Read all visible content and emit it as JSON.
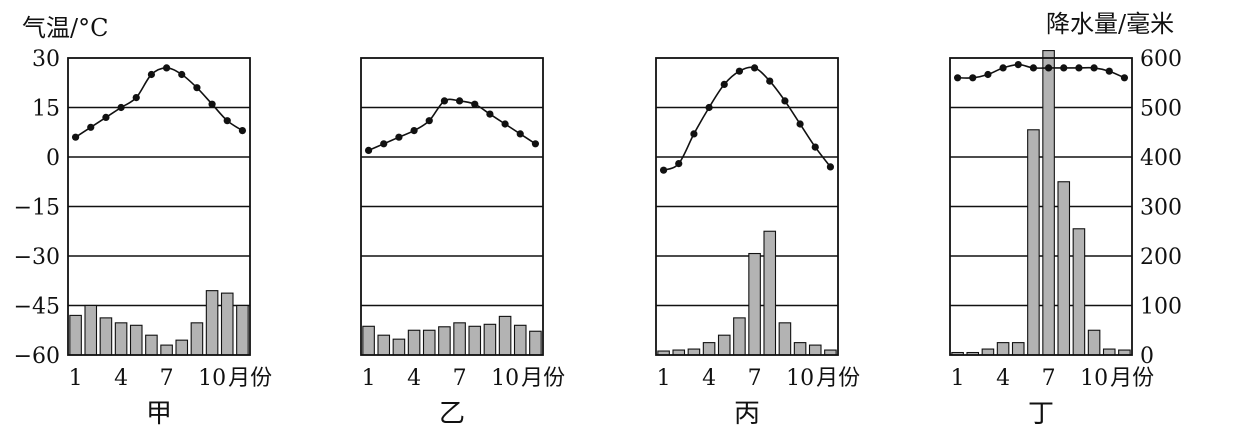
{
  "figure": {
    "left_axis_label": "气温/°C",
    "right_axis_label": "降水量/毫米",
    "x_unit": "月份",
    "temp_ticks": [
      "30",
      "15",
      "0",
      "−15",
      "−30",
      "−45",
      "−60"
    ],
    "precip_ticks": [
      "600",
      "500",
      "400",
      "300",
      "200",
      "100",
      "0"
    ],
    "month_ticks": [
      "1",
      "4",
      "7",
      "10"
    ]
  },
  "chart_data": [
    {
      "type": "bar",
      "title": "甲",
      "categories": [
        "1",
        "2",
        "3",
        "4",
        "5",
        "6",
        "7",
        "8",
        "9",
        "10",
        "11",
        "12"
      ],
      "temperature_ylim": [
        -60,
        30
      ],
      "precipitation_ylim": [
        0,
        600
      ],
      "series": [
        {
          "name": "气温",
          "type": "line",
          "values": [
            6,
            9,
            12,
            15,
            18,
            25,
            27,
            25,
            21,
            16,
            11,
            8
          ]
        },
        {
          "name": "降水量",
          "type": "bar",
          "values": [
            80,
            100,
            75,
            65,
            60,
            40,
            20,
            30,
            65,
            130,
            125,
            100
          ]
        }
      ]
    },
    {
      "type": "bar",
      "title": "乙",
      "categories": [
        "1",
        "2",
        "3",
        "4",
        "5",
        "6",
        "7",
        "8",
        "9",
        "10",
        "11",
        "12"
      ],
      "temperature_ylim": [
        -60,
        30
      ],
      "precipitation_ylim": [
        0,
        600
      ],
      "series": [
        {
          "name": "气温",
          "type": "line",
          "values": [
            2,
            4,
            6,
            8,
            11,
            17,
            17,
            16,
            13,
            10,
            7,
            4
          ]
        },
        {
          "name": "降水量",
          "type": "bar",
          "values": [
            58,
            40,
            32,
            50,
            50,
            57,
            65,
            58,
            62,
            78,
            60,
            48
          ]
        }
      ]
    },
    {
      "type": "bar",
      "title": "丙",
      "categories": [
        "1",
        "2",
        "3",
        "4",
        "5",
        "6",
        "7",
        "8",
        "9",
        "10",
        "11",
        "12"
      ],
      "temperature_ylim": [
        -60,
        30
      ],
      "precipitation_ylim": [
        0,
        600
      ],
      "series": [
        {
          "name": "气温",
          "type": "line",
          "values": [
            -4,
            -2,
            7,
            15,
            22,
            26,
            27,
            23,
            17,
            10,
            3,
            -3
          ]
        },
        {
          "name": "降水量",
          "type": "bar",
          "values": [
            8,
            10,
            12,
            25,
            40,
            75,
            205,
            250,
            65,
            25,
            20,
            10
          ]
        }
      ]
    },
    {
      "type": "bar",
      "title": "丁",
      "categories": [
        "1",
        "2",
        "3",
        "4",
        "5",
        "6",
        "7",
        "8",
        "9",
        "10",
        "11",
        "12"
      ],
      "temperature_ylim": [
        -60,
        30
      ],
      "precipitation_ylim": [
        0,
        600
      ],
      "series": [
        {
          "name": "气温",
          "type": "line",
          "values": [
            24,
            24,
            25,
            27,
            28,
            27,
            27,
            27,
            27,
            27,
            26,
            24
          ]
        },
        {
          "name": "降水量",
          "type": "bar",
          "values": [
            5,
            5,
            12,
            25,
            25,
            455,
            615,
            350,
            255,
            50,
            12,
            10
          ]
        }
      ]
    }
  ]
}
